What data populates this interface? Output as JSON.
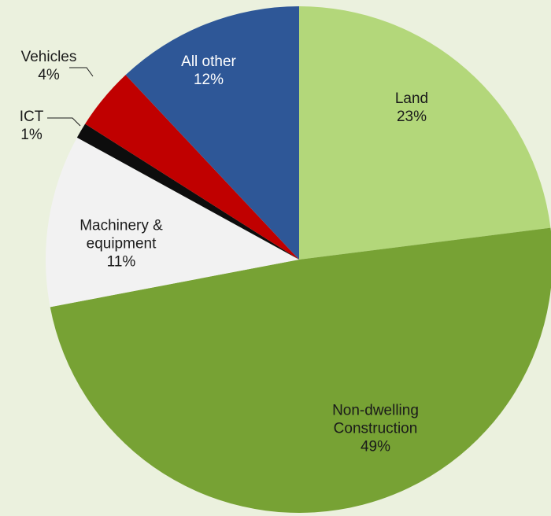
{
  "chart_data": {
    "type": "pie",
    "categories": [
      "Land",
      "Non-dwelling\nConstruction",
      "Machinery &\nequipment",
      "ICT",
      "Vehicles",
      "All other"
    ],
    "values": [
      23,
      49,
      11,
      1,
      4,
      12
    ],
    "value_labels": [
      "23%",
      "49%",
      "11%",
      "1%",
      "4%",
      "12%"
    ],
    "colors": [
      "#b3d77a",
      "#77a234",
      "#f2f2f2",
      "#0d0d0d",
      "#c00000",
      "#2e5797"
    ]
  }
}
